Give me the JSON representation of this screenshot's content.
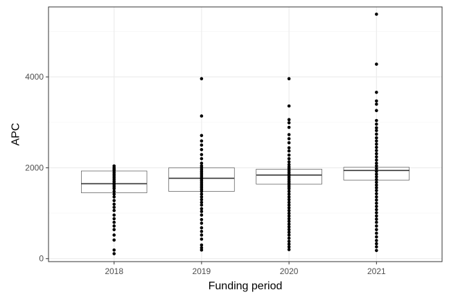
{
  "chart_data": {
    "type": "boxplot",
    "xlabel": "Funding period",
    "ylabel": "APC",
    "categories": [
      "2018",
      "2019",
      "2020",
      "2021"
    ],
    "ylim": [
      -65,
      5540
    ],
    "yticks": [
      0,
      2000,
      4000
    ],
    "ytick_labels": [
      "0",
      "2000",
      "4000"
    ],
    "grid": true,
    "colors": {
      "box_fill": "#ffffff",
      "box_stroke": "#333333",
      "points": "#000000",
      "grid_major": "#ebebeb",
      "grid_minor": "#f4f4f4",
      "panel_border": "#333333"
    },
    "boxes": [
      {
        "category": "2018",
        "q1": 1450,
        "median": 1650,
        "q3": 1930
      },
      {
        "category": "2019",
        "q1": 1480,
        "median": 1770,
        "q3": 2000
      },
      {
        "category": "2020",
        "q1": 1640,
        "median": 1840,
        "q3": 1970
      },
      {
        "category": "2021",
        "q1": 1730,
        "median": 1940,
        "q3": 2010
      }
    ],
    "points": [
      {
        "category": "2018",
        "values": [
          110,
          190,
          410,
          520,
          640,
          720,
          800,
          880,
          960,
          1060,
          1130,
          1200,
          1280,
          1360,
          1420,
          1480,
          1540,
          1580,
          1620,
          1660,
          1700,
          1740,
          1780,
          1820,
          1860,
          1900,
          1940,
          1970,
          2000,
          2040
        ]
      },
      {
        "category": "2019",
        "values": [
          190,
          240,
          300,
          430,
          520,
          600,
          680,
          780,
          860,
          960,
          1040,
          1100,
          1180,
          1240,
          1300,
          1360,
          1420,
          1480,
          1520,
          1560,
          1600,
          1640,
          1680,
          1720,
          1760,
          1800,
          1840,
          1880,
          1920,
          1960,
          2000,
          2040,
          2100,
          2200,
          2290,
          2400,
          2500,
          2590,
          2710,
          3140,
          3960
        ]
      },
      {
        "category": "2020",
        "values": [
          200,
          260,
          320,
          380,
          450,
          520,
          580,
          640,
          700,
          760,
          820,
          880,
          940,
          1000,
          1060,
          1120,
          1180,
          1240,
          1300,
          1360,
          1420,
          1480,
          1540,
          1580,
          1620,
          1660,
          1700,
          1740,
          1780,
          1820,
          1860,
          1900,
          1940,
          1980,
          2020,
          2070,
          2130,
          2200,
          2280,
          2370,
          2440,
          2550,
          2640,
          2730,
          2890,
          2990,
          3060,
          3360,
          3960
        ]
      },
      {
        "category": "2021",
        "values": [
          180,
          260,
          330,
          400,
          480,
          560,
          640,
          720,
          800,
          870,
          940,
          1010,
          1080,
          1150,
          1220,
          1290,
          1360,
          1430,
          1500,
          1560,
          1620,
          1680,
          1740,
          1800,
          1860,
          1920,
          1980,
          2040,
          2100,
          2170,
          2240,
          2310,
          2380,
          2450,
          2520,
          2590,
          2660,
          2740,
          2820,
          2880,
          2960,
          3040,
          3260,
          3400,
          3470,
          3660,
          4280,
          5380
        ]
      }
    ]
  }
}
